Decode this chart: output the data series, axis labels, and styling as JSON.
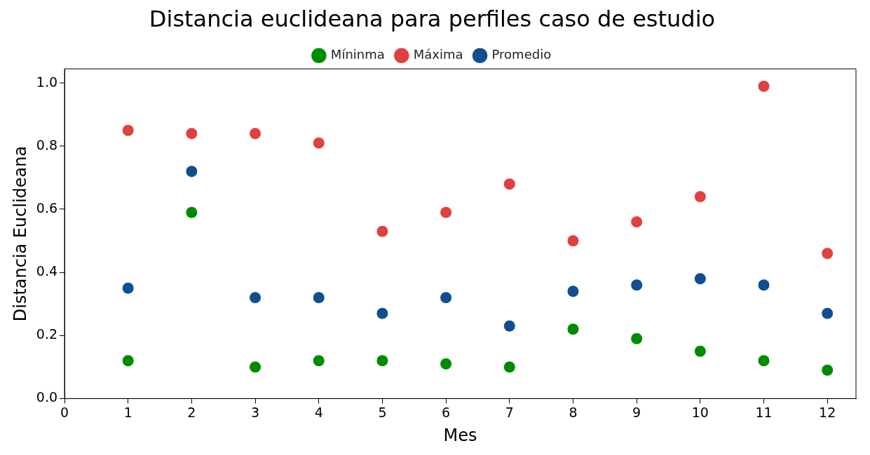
{
  "chart_data": {
    "type": "scatter",
    "title": "Distancia euclideana para perfiles caso de estudio",
    "xlabel": "Mes",
    "ylabel": "Distancia Euclideana",
    "x": [
      1,
      2,
      3,
      4,
      5,
      6,
      7,
      8,
      9,
      10,
      11,
      12
    ],
    "series": [
      {
        "name": "Míninma",
        "color": "#008c00",
        "values": [
          0.12,
          0.59,
          0.1,
          0.12,
          0.12,
          0.11,
          0.1,
          0.22,
          0.19,
          0.15,
          0.12,
          0.09
        ]
      },
      {
        "name": "Máxima",
        "color": "#e04040",
        "values": [
          0.85,
          0.84,
          0.84,
          0.81,
          0.53,
          0.59,
          0.68,
          0.5,
          0.56,
          0.64,
          0.99,
          0.46
        ]
      },
      {
        "name": "Promedio",
        "color": "#104f8f",
        "values": [
          0.35,
          0.72,
          0.32,
          0.32,
          0.27,
          0.32,
          0.23,
          0.34,
          0.36,
          0.38,
          0.36,
          0.27
        ]
      }
    ],
    "xlim": [
      0,
      12.45
    ],
    "xticks": [
      0,
      1,
      2,
      3,
      4,
      5,
      6,
      7,
      8,
      9,
      10,
      11,
      12
    ],
    "ylim": [
      0,
      1.045
    ],
    "yticks": [
      {
        "value": 0,
        "label": "0.0"
      },
      0.2,
      0.4,
      0.6,
      0.8,
      {
        "value": 1,
        "label": "1.0"
      }
    ],
    "grid": false,
    "legend": "top",
    "marker": "circle"
  }
}
